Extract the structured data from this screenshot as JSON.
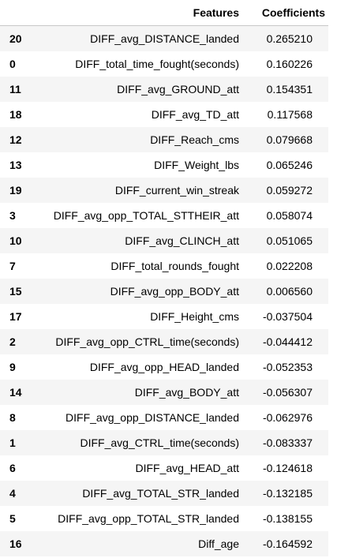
{
  "table": {
    "columns": [
      "Features",
      "Coefficients"
    ],
    "rows": [
      {
        "index": "20",
        "feature": "DIFF_avg_DISTANCE_landed",
        "coefficient": "0.265210"
      },
      {
        "index": "0",
        "feature": "DIFF_total_time_fought(seconds)",
        "coefficient": "0.160226"
      },
      {
        "index": "11",
        "feature": "DIFF_avg_GROUND_att",
        "coefficient": "0.154351"
      },
      {
        "index": "18",
        "feature": "DIFF_avg_TD_att",
        "coefficient": "0.117568"
      },
      {
        "index": "12",
        "feature": "DIFF_Reach_cms",
        "coefficient": "0.079668"
      },
      {
        "index": "13",
        "feature": "DIFF_Weight_lbs",
        "coefficient": "0.065246"
      },
      {
        "index": "19",
        "feature": "DIFF_current_win_streak",
        "coefficient": "0.059272"
      },
      {
        "index": "3",
        "feature": "DIFF_avg_opp_TOTAL_STTHEIR_att",
        "coefficient": "0.058074"
      },
      {
        "index": "10",
        "feature": "DIFF_avg_CLINCH_att",
        "coefficient": "0.051065"
      },
      {
        "index": "7",
        "feature": "DIFF_total_rounds_fought",
        "coefficient": "0.022208"
      },
      {
        "index": "15",
        "feature": "DIFF_avg_opp_BODY_att",
        "coefficient": "0.006560"
      },
      {
        "index": "17",
        "feature": "DIFF_Height_cms",
        "coefficient": "-0.037504"
      },
      {
        "index": "2",
        "feature": "DIFF_avg_opp_CTRL_time(seconds)",
        "coefficient": "-0.044412"
      },
      {
        "index": "9",
        "feature": "DIFF_avg_opp_HEAD_landed",
        "coefficient": "-0.052353"
      },
      {
        "index": "14",
        "feature": "DIFF_avg_BODY_att",
        "coefficient": "-0.056307"
      },
      {
        "index": "8",
        "feature": "DIFF_avg_opp_DISTANCE_landed",
        "coefficient": "-0.062976"
      },
      {
        "index": "1",
        "feature": "DIFF_avg_CTRL_time(seconds)",
        "coefficient": "-0.083337"
      },
      {
        "index": "6",
        "feature": "DIFF_avg_HEAD_att",
        "coefficient": "-0.124618"
      },
      {
        "index": "4",
        "feature": "DIFF_avg_TOTAL_STR_landed",
        "coefficient": "-0.132185"
      },
      {
        "index": "5",
        "feature": "DIFF_avg_opp_TOTAL_STR_landed",
        "coefficient": "-0.138155"
      },
      {
        "index": "16",
        "feature": "Diff_age",
        "coefficient": "-0.164592"
      }
    ]
  }
}
